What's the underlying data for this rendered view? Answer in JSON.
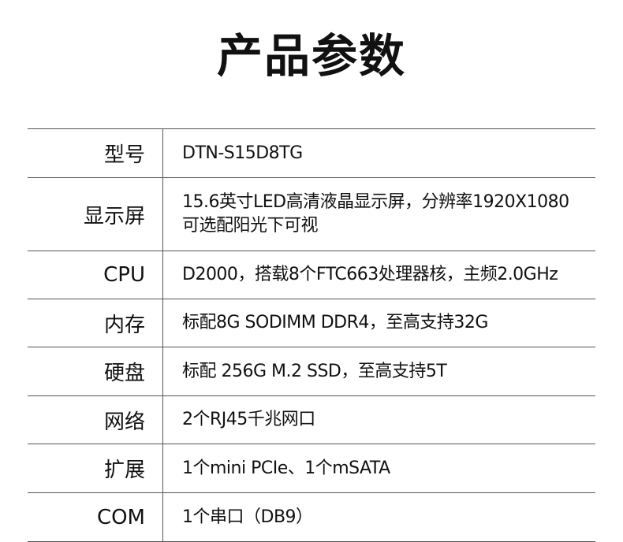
{
  "title": "产品参数",
  "rows": [
    {
      "label": "型号",
      "value": "DTN-S15D8TG"
    },
    {
      "label": "显示屏",
      "value": "15.6英寸LED高清液晶显示屏，分辨率1920X1080\n可选配阳光下可视"
    },
    {
      "label": "CPU",
      "value": "D2000，搭载8个FTC663处理器核，主频2.0GHz"
    },
    {
      "label": "内存",
      "value": "标配8G SODIMM DDR4，至高支持32G"
    },
    {
      "label": "硬盘",
      "value": "标配 256G M.2 SSD，至高支持5T"
    },
    {
      "label": "网络",
      "value": "2个RJ45千兆网口"
    },
    {
      "label": "扩展",
      "value": "1个mini PCIe、1个mSATA"
    },
    {
      "label": "COM",
      "value": "1个串口（DB9）"
    }
  ]
}
